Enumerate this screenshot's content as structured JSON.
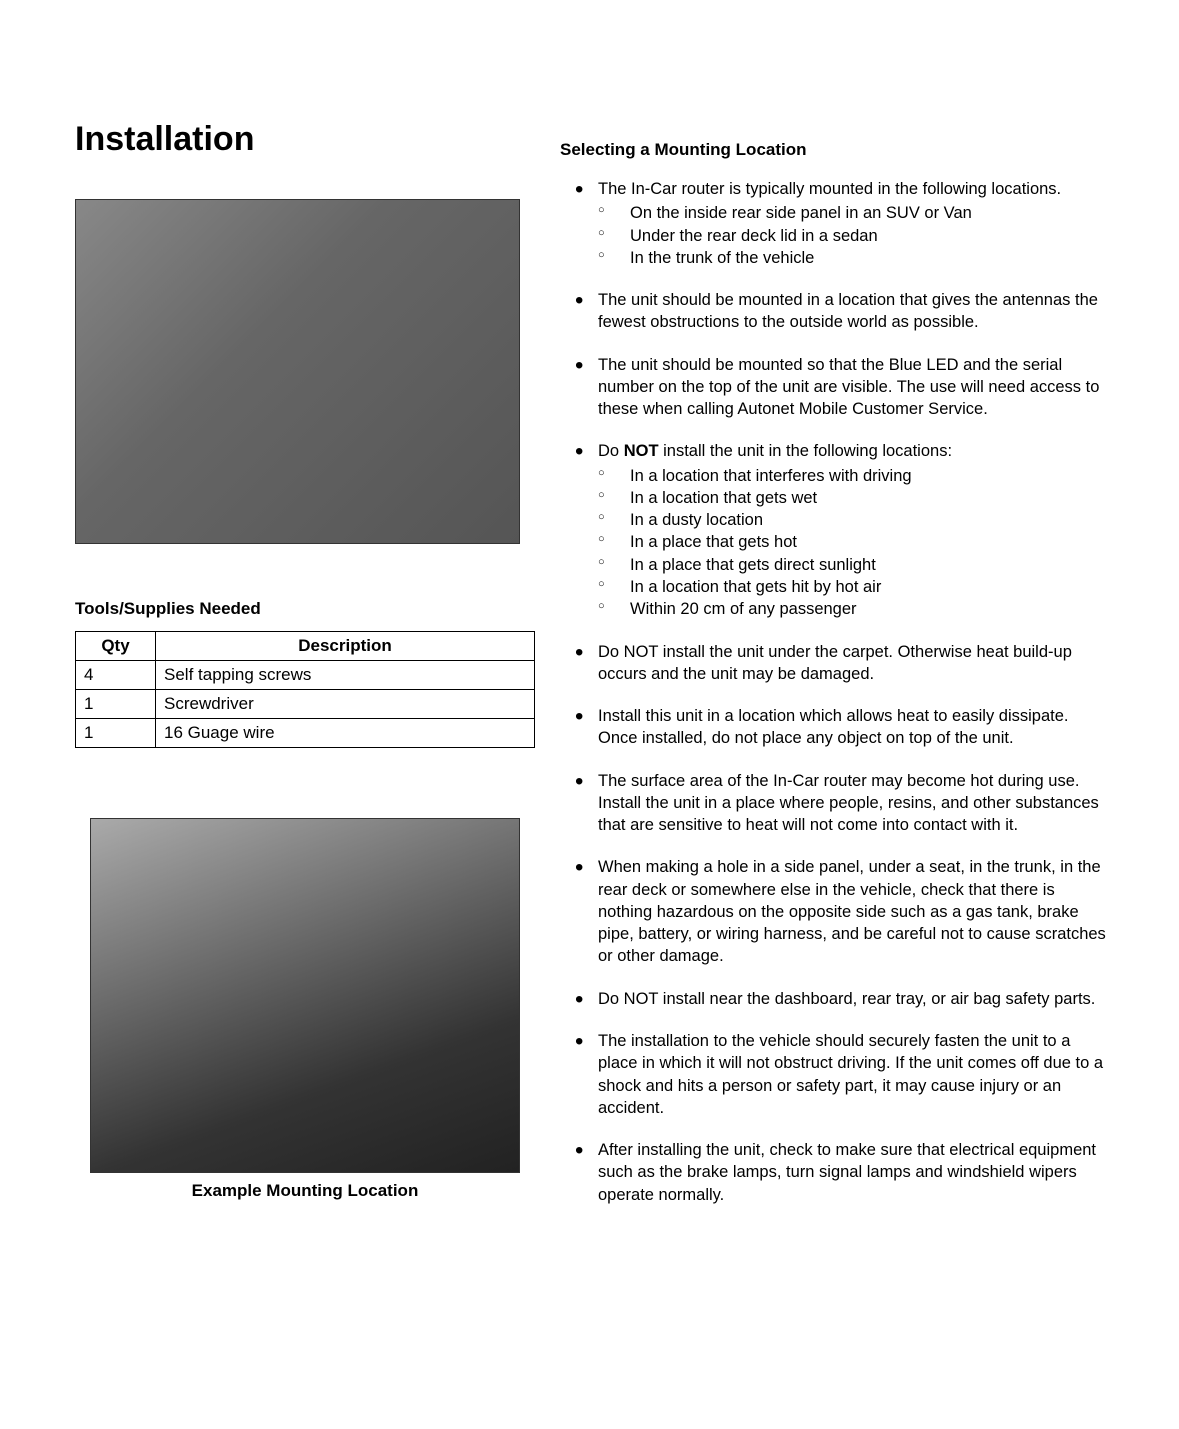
{
  "title": "Installation",
  "tools": {
    "heading": "Tools/Supplies Needed",
    "columns": [
      "Qty",
      "Description"
    ],
    "rows": [
      [
        "4",
        " Self tapping screws"
      ],
      [
        "1",
        "Screwdriver"
      ],
      [
        "1",
        "16 Guage wire"
      ]
    ]
  },
  "mounting_caption": "Example Mounting Location",
  "right": {
    "heading": "Selecting a Mounting Location",
    "items": [
      {
        "text": "The In-Car router is typically mounted in the following locations.",
        "sub": [
          "On the inside rear side panel in an SUV or Van",
          "Under the rear deck lid in a sedan",
          "In the trunk of the vehicle"
        ]
      },
      {
        "text": "The unit should be mounted in a location that gives the antennas the fewest obstructions to the outside world as possible."
      },
      {
        "text": "The unit should be mounted so that the Blue LED and the serial number on the top of the unit are visible. The use will need access to these when calling Autonet Mobile Customer Service."
      },
      {
        "pre": "Do ",
        "bold": "NOT",
        "post": " install the unit in the following locations:",
        "sub": [
          "In a location that interferes with driving",
          "In a location that gets wet",
          "In a dusty location",
          "In a place that gets hot",
          "In a place that gets direct sunlight",
          "In a location that gets hit by hot air",
          "Within 20 cm of any passenger"
        ]
      },
      {
        "text": "Do NOT install the unit under the carpet. Otherwise heat build-up occurs and the unit may be damaged."
      },
      {
        "text": "Install this unit in a location which allows heat to easily dissipate. Once installed, do not place any object on top of the unit."
      },
      {
        "text": "The surface area of the In-Car router may become hot during use. Install the unit in a place where people, resins, and other substances that are sensitive to heat will not come into contact with it."
      },
      {
        "text": "When making a hole in a side panel, under a seat, in the trunk, in the rear deck or somewhere else in the vehicle, check that there is nothing hazardous on the opposite side such as a gas tank, brake pipe, battery, or wiring harness, and be careful not to cause scratches or other damage."
      },
      {
        "text": "Do NOT install near the dashboard, rear tray, or air bag safety parts."
      },
      {
        "text": "The installation to the vehicle should securely fasten the unit to a place in which it will not obstruct driving. If the unit comes off due to a shock and hits a person or safety part, it may cause injury or an accident."
      },
      {
        "text": "After installing the unit, check to make sure that electrical equipment such as the brake lamps, turn signal lamps and windshield wipers operate normally."
      }
    ]
  }
}
